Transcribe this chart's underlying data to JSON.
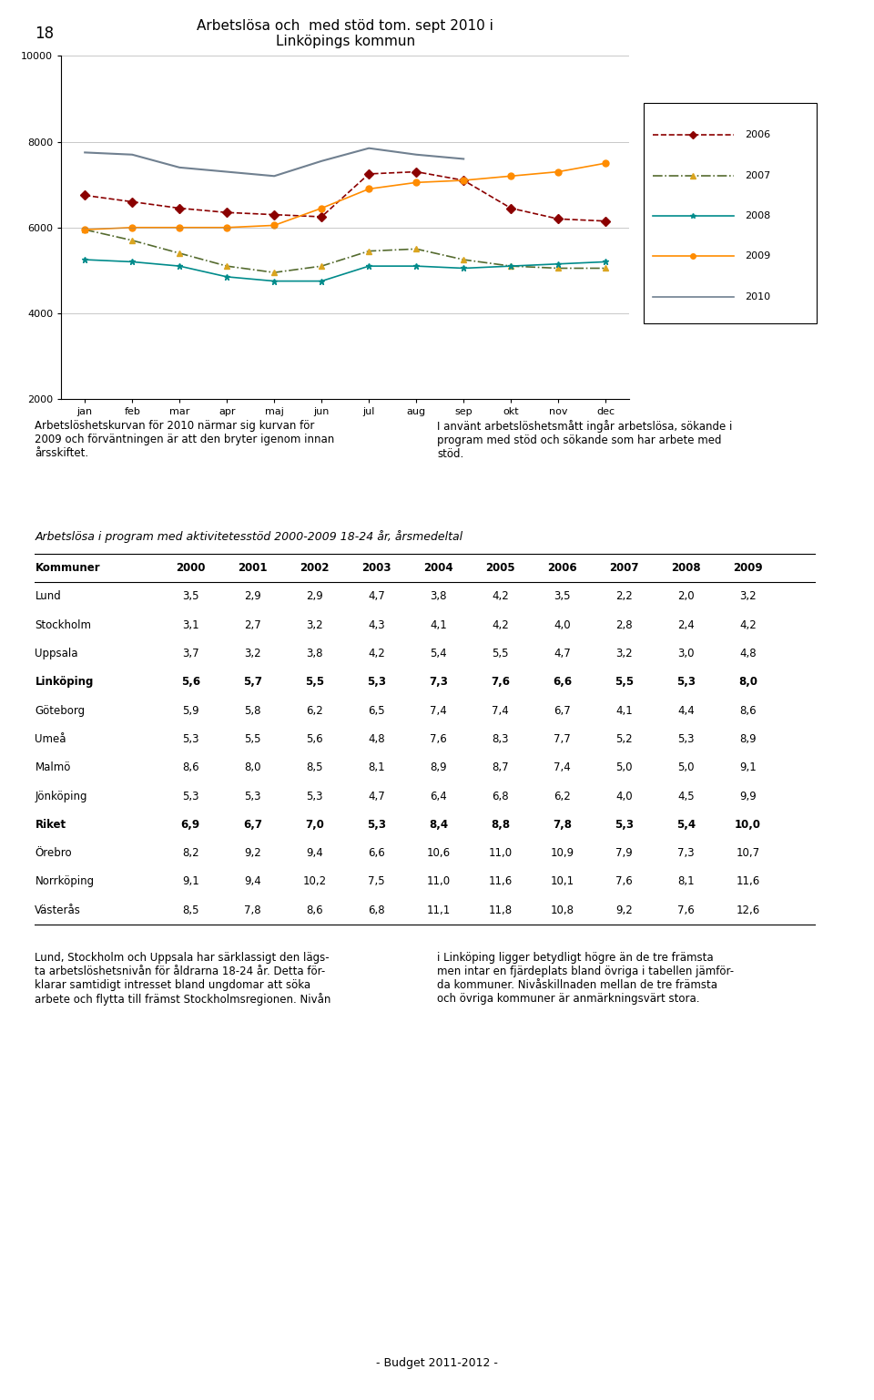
{
  "page_number": "18",
  "chart_title": "Arbetslösa och  med stöd tom. sept 2010 i\nLinköpings kommun",
  "chart_ylim": [
    2000,
    10000
  ],
  "chart_yticks": [
    2000,
    4000,
    6000,
    8000,
    10000
  ],
  "chart_xticks": [
    "jan",
    "feb",
    "mar",
    "apr",
    "maj",
    "jun",
    "jul",
    "aug",
    "sep",
    "okt",
    "nov",
    "dec"
  ],
  "series": {
    "2006": {
      "color": "#8B0000",
      "linestyle": "--",
      "marker": "D",
      "marker_color": "#8B0000",
      "values": [
        6750,
        6600,
        6450,
        6350,
        6300,
        6250,
        7250,
        7300,
        7100,
        6450,
        6200,
        6150
      ]
    },
    "2007": {
      "color": "#556B2F",
      "linestyle": "-.",
      "marker": "^",
      "marker_color": "#DAA520",
      "values": [
        5950,
        5700,
        5400,
        5100,
        4950,
        5100,
        5450,
        5500,
        5250,
        5100,
        5050,
        5050
      ]
    },
    "2008": {
      "color": "#008B8B",
      "linestyle": "-",
      "marker": "*",
      "marker_color": "#008B8B",
      "values": [
        5250,
        5200,
        5100,
        4850,
        4750,
        4750,
        5100,
        5100,
        5050,
        5100,
        5150,
        5200
      ]
    },
    "2009": {
      "color": "#FF8C00",
      "linestyle": "-",
      "marker": "o",
      "marker_color": "#FF8C00",
      "values": [
        5950,
        6000,
        6000,
        6000,
        6050,
        6450,
        6900,
        7050,
        7100,
        7200,
        7300,
        7500
      ]
    },
    "2010": {
      "color": "#708090",
      "linestyle": "-",
      "marker": null,
      "marker_color": "#708090",
      "values": [
        7750,
        7700,
        7400,
        7300,
        7200,
        7550,
        7850,
        7700,
        7600,
        null,
        null,
        null
      ]
    }
  },
  "legend_years": [
    "2006",
    "2007",
    "2008",
    "2009",
    "2010"
  ],
  "text_left_para1": "Arbetslöshetskurvan för 2010 närmar sig kurvan för\n2009 och förväntningen är att den bryter igenom innan\nårsskiftet.",
  "text_right_para1": "I använt arbetslöshetsmått ingår arbetslösa, sökande i\nprogram med stöd och sökande som har arbete med\nstöd.",
  "table_title": "Arbetslösa i program med aktivitetesstöd 2000-2009 18-24 år, årsmedeltal",
  "table_headers": [
    "Kommuner",
    "2000",
    "2001",
    "2002",
    "2003",
    "2004",
    "2005",
    "2006",
    "2007",
    "2008",
    "2009"
  ],
  "table_rows": [
    [
      "Lund",
      "3,5",
      "2,9",
      "2,9",
      "4,7",
      "3,8",
      "4,2",
      "3,5",
      "2,2",
      "2,0",
      "3,2"
    ],
    [
      "Stockholm",
      "3,1",
      "2,7",
      "3,2",
      "4,3",
      "4,1",
      "4,2",
      "4,0",
      "2,8",
      "2,4",
      "4,2"
    ],
    [
      "Uppsala",
      "3,7",
      "3,2",
      "3,8",
      "4,2",
      "5,4",
      "5,5",
      "4,7",
      "3,2",
      "3,0",
      "4,8"
    ],
    [
      "Linköping",
      "5,6",
      "5,7",
      "5,5",
      "5,3",
      "7,3",
      "7,6",
      "6,6",
      "5,5",
      "5,3",
      "8,0"
    ],
    [
      "Göteborg",
      "5,9",
      "5,8",
      "6,2",
      "6,5",
      "7,4",
      "7,4",
      "6,7",
      "4,1",
      "4,4",
      "8,6"
    ],
    [
      "Umeå",
      "5,3",
      "5,5",
      "5,6",
      "4,8",
      "7,6",
      "8,3",
      "7,7",
      "5,2",
      "5,3",
      "8,9"
    ],
    [
      "Malmö",
      "8,6",
      "8,0",
      "8,5",
      "8,1",
      "8,9",
      "8,7",
      "7,4",
      "5,0",
      "5,0",
      "9,1"
    ],
    [
      "Jönköping",
      "5,3",
      "5,3",
      "5,3",
      "4,7",
      "6,4",
      "6,8",
      "6,2",
      "4,0",
      "4,5",
      "9,9"
    ],
    [
      "Riket",
      "6,9",
      "6,7",
      "7,0",
      "5,3",
      "8,4",
      "8,8",
      "7,8",
      "5,3",
      "5,4",
      "10,0"
    ],
    [
      "Örebro",
      "8,2",
      "9,2",
      "9,4",
      "6,6",
      "10,6",
      "11,0",
      "10,9",
      "7,9",
      "7,3",
      "10,7"
    ],
    [
      "Norrköping",
      "9,1",
      "9,4",
      "10,2",
      "7,5",
      "11,0",
      "11,6",
      "10,1",
      "7,6",
      "8,1",
      "11,6"
    ],
    [
      "Västerås",
      "8,5",
      "7,8",
      "8,6",
      "6,8",
      "11,1",
      "11,8",
      "10,8",
      "9,2",
      "7,6",
      "12,6"
    ]
  ],
  "bold_rows": [
    "Linköping",
    "Riket"
  ],
  "text_left_para2": "Lund, Stockholm och Uppsala har särklassigt den lägs-\nta arbetslöshetsnivån för åldrarna 18-24 år. Detta för-\nklarar samtidigt intresset bland ungdomar att söka\narbete och flytta till främst Stockholmsregionen. Nivån",
  "text_right_para2": "i Linköping ligger betydligt högre än de tre främsta\nmen intar en fjärdeplats bland övriga i tabellen jämför-\nda kommuner. Nivåskillnaden mellan de tre främsta\noch övriga kommuner är anmärkningsvärt stora.",
  "footer": "- Budget 2011-2012 -",
  "bg_color": "#ffffff"
}
